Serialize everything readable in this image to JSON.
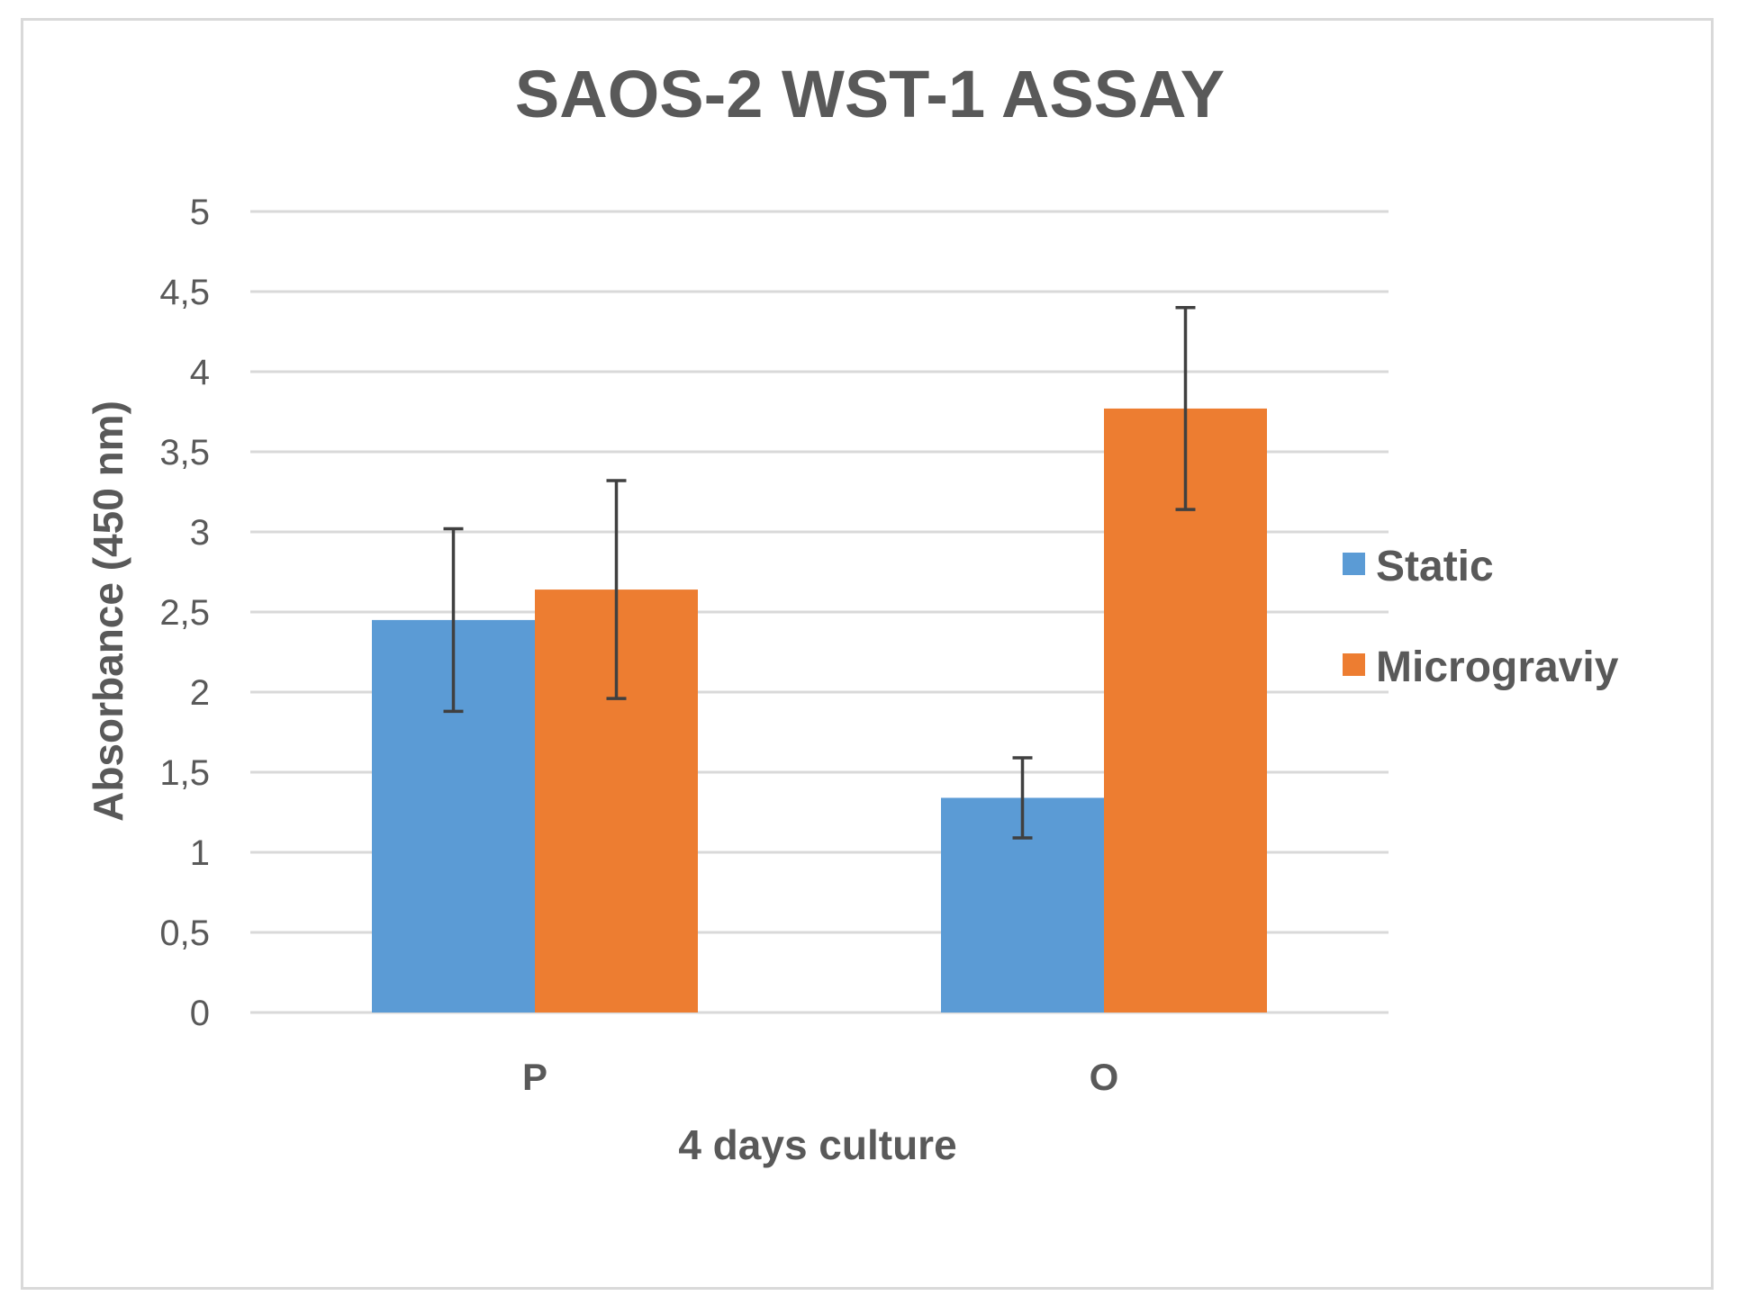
{
  "chart_data": {
    "type": "bar",
    "title": "SAOS-2  WST-1 ASSAY",
    "xlabel": "4 days culture",
    "ylabel": "Absorbance (450 nm)",
    "categories": [
      "P",
      "O"
    ],
    "series": [
      {
        "name": "Static",
        "color": "#5b9bd5",
        "values": [
          2.45,
          1.34
        ],
        "errors": [
          0.57,
          0.25
        ]
      },
      {
        "name": "Micrograviy",
        "color": "#ed7d31",
        "values": [
          2.64,
          3.77
        ],
        "errors": [
          0.68,
          0.63
        ]
      }
    ],
    "ylim": [
      0,
      5
    ],
    "yticks": [
      0,
      0.5,
      1,
      1.5,
      2,
      2.5,
      3,
      3.5,
      4,
      4.5,
      5
    ],
    "ytick_labels": [
      "0",
      "0,5",
      "1",
      "1,5",
      "2",
      "2,5",
      "3",
      "3,5",
      "4",
      "4,5",
      "5"
    ],
    "grid": true,
    "legend_position": "right",
    "colors": {
      "gridline": "#d9d9d9",
      "error_bar": "#404040",
      "text": "#595959"
    }
  }
}
